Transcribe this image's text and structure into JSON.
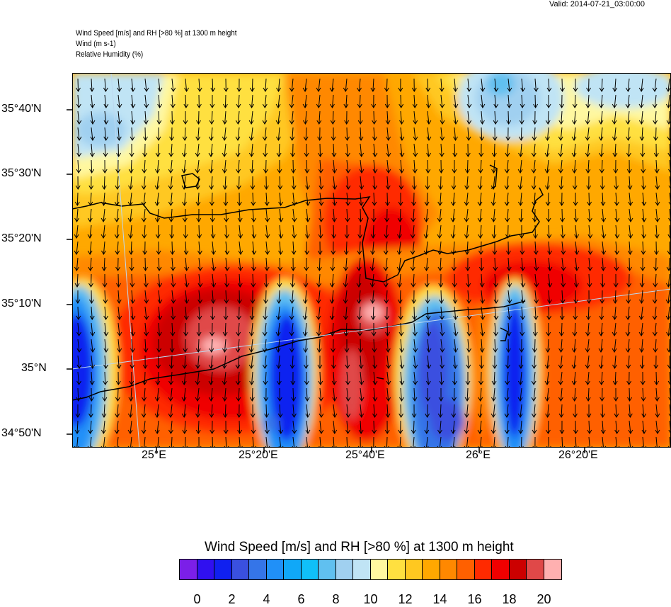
{
  "valid_time": "Valid: 2014-07-21_03:00:00",
  "header_lines": [
    "Wind Speed [m/s] and RH [>80 %] at 1300 m height",
    "Wind   (m s-1)",
    "Relative Humidity   (%)"
  ],
  "lat_labels": [
    "35°40'N",
    "35°30'N",
    "35°20'N",
    "35°10'N",
    "35°N",
    "34°50'N"
  ],
  "lon_labels": [
    "25°E",
    "25°20'E",
    "25°40'E",
    "26°E",
    "26°20'E"
  ],
  "colorbar": {
    "title": "Wind Speed [m/s] and RH [>80 %] at 1300 m height",
    "labels": [
      "0",
      "2",
      "4",
      "6",
      "8",
      "10",
      "12",
      "14",
      "16",
      "18",
      "20"
    ],
    "colors": [
      "#7b1fe8",
      "#3010f0",
      "#1020f0",
      "#3a50e0",
      "#3575e8",
      "#2090f8",
      "#10a8f8",
      "#10c0f8",
      "#60c0f0",
      "#a0d0f0",
      "#c0e4f5",
      "#fff8a0",
      "#ffe040",
      "#ffc820",
      "#ffa800",
      "#ff8800",
      "#ff6000",
      "#ff2a00",
      "#f00000",
      "#cc0000",
      "#e04848",
      "#ffb0b0"
    ]
  }
}
